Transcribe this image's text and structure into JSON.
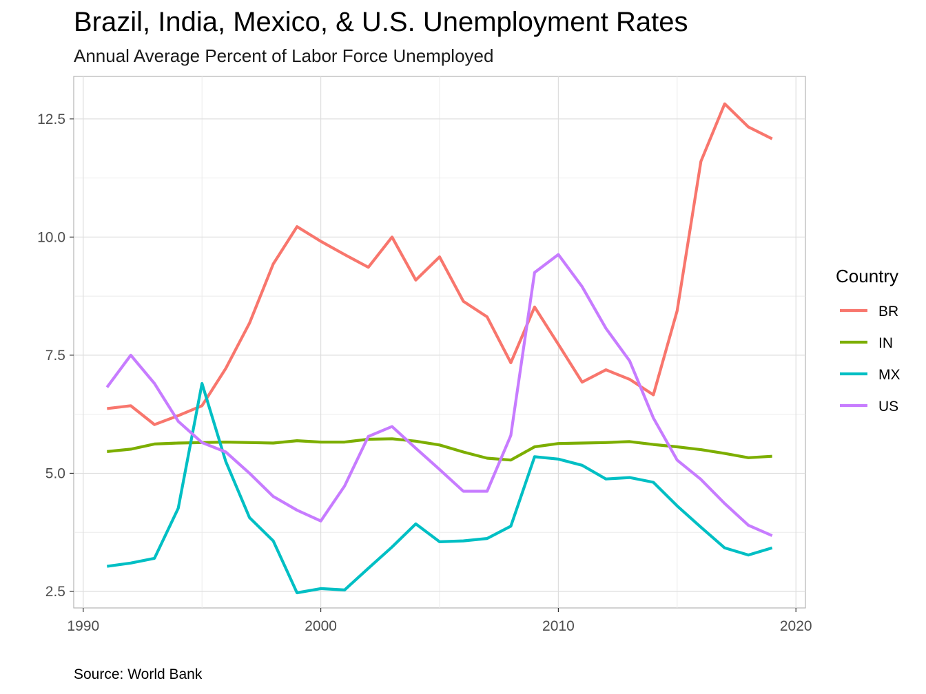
{
  "chart_data": {
    "type": "line",
    "title": "Brazil, India, Mexico, & U.S. Unemployment Rates",
    "subtitle": "Annual Average Percent of Labor Force Unemployed",
    "caption": "Source: World Bank",
    "xlabel": "",
    "ylabel": "",
    "xlim": [
      1989.6,
      2020.4
    ],
    "ylim": [
      2.15,
      13.4
    ],
    "x_ticks": [
      1990,
      2000,
      2010,
      2020
    ],
    "x_tick_labels": [
      "1990",
      "2000",
      "2010",
      "2020"
    ],
    "y_ticks": [
      2.5,
      5.0,
      7.5,
      10.0,
      12.5
    ],
    "y_tick_labels": [
      "2.5",
      "5.0",
      "7.5",
      "10.0",
      "12.5"
    ],
    "grid": true,
    "legend": {
      "title": "Country",
      "position": "right"
    },
    "x": [
      1991,
      1992,
      1993,
      1994,
      1995,
      1996,
      1997,
      1998,
      1999,
      2000,
      2001,
      2002,
      2003,
      2004,
      2005,
      2006,
      2007,
      2008,
      2009,
      2010,
      2011,
      2012,
      2013,
      2014,
      2015,
      2016,
      2017,
      2018,
      2019
    ],
    "series": [
      {
        "name": "BR",
        "color": "#F8766D",
        "values": [
          6.37,
          6.43,
          6.03,
          6.22,
          6.43,
          7.22,
          8.18,
          9.43,
          10.22,
          9.91,
          9.63,
          9.36,
          10.0,
          9.09,
          9.58,
          8.64,
          8.31,
          7.34,
          8.52,
          7.73,
          6.93,
          7.19,
          6.99,
          6.66,
          8.44,
          11.6,
          12.82,
          12.33,
          12.08
        ]
      },
      {
        "name": "IN",
        "color": "#7CAE00",
        "values": [
          5.46,
          5.51,
          5.62,
          5.64,
          5.65,
          5.66,
          5.65,
          5.64,
          5.69,
          5.66,
          5.66,
          5.72,
          5.73,
          5.68,
          5.6,
          5.45,
          5.32,
          5.28,
          5.56,
          5.63,
          5.64,
          5.65,
          5.67,
          5.61,
          5.56,
          5.5,
          5.42,
          5.33,
          5.36
        ]
      },
      {
        "name": "MX",
        "color": "#00BFC4",
        "values": [
          3.03,
          3.1,
          3.2,
          4.26,
          6.9,
          5.25,
          4.06,
          3.57,
          2.47,
          2.56,
          2.53,
          2.99,
          3.44,
          3.93,
          3.55,
          3.57,
          3.62,
          3.88,
          5.35,
          5.3,
          5.17,
          4.88,
          4.91,
          4.81,
          4.31,
          3.86,
          3.42,
          3.27,
          3.42
        ]
      },
      {
        "name": "US",
        "color": "#C77CFF",
        "values": [
          6.82,
          7.5,
          6.9,
          6.1,
          5.65,
          5.45,
          5.0,
          4.51,
          4.22,
          3.99,
          4.73,
          5.78,
          5.99,
          5.53,
          5.08,
          4.62,
          4.62,
          5.8,
          9.25,
          9.63,
          8.95,
          8.07,
          7.38,
          6.17,
          5.28,
          4.87,
          4.36,
          3.9,
          3.68
        ]
      }
    ]
  }
}
